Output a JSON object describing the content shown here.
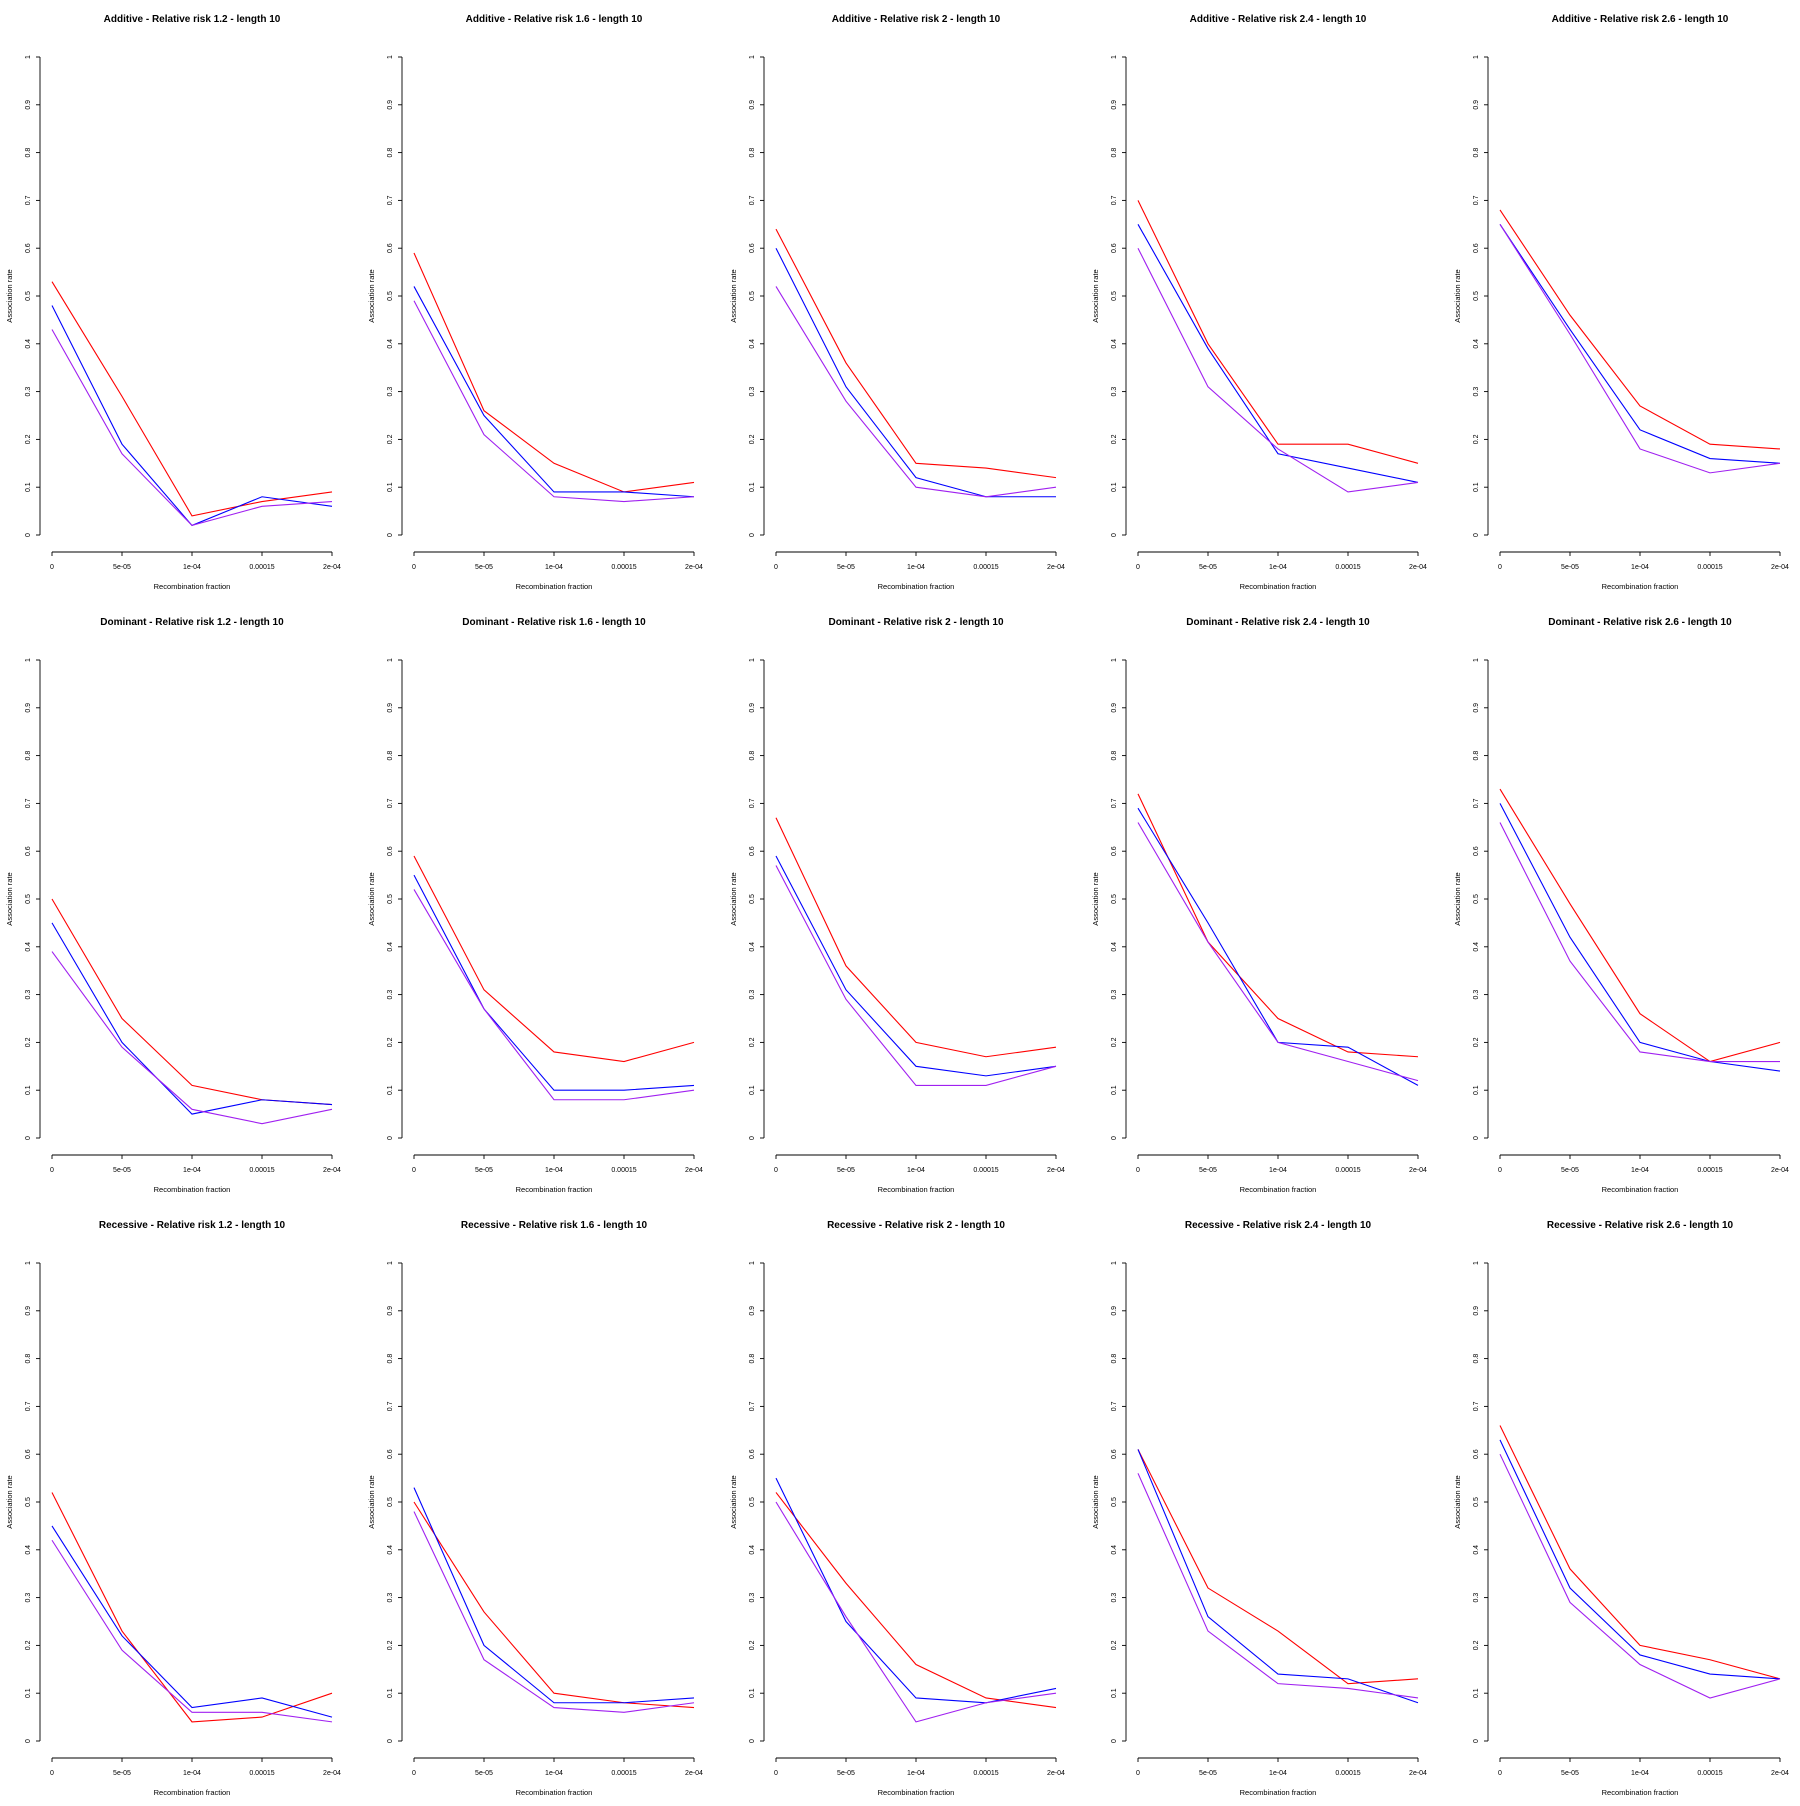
{
  "colors": {
    "series_red": "#ff0000",
    "series_blue": "#0000ff",
    "series_purple": "#a020f0",
    "axis": "#000000"
  },
  "chart_data": [
    {
      "type": "line",
      "title": "Additive  - Relative risk 1.2 - length 10",
      "xlabel": "Recombination fraction",
      "ylabel": "Association rate",
      "categories": [
        "0",
        "5e-05",
        "1e-04",
        "0.00015",
        "2e-04"
      ],
      "y_ticks": [
        "0",
        "0.1",
        "0.2",
        "0.3",
        "0.4",
        "0.5",
        "0.6",
        "0.7",
        "0.8",
        "0.9",
        "1"
      ],
      "ylim": [
        0,
        1
      ],
      "series": [
        {
          "color": "#ff0000",
          "values": [
            0.53,
            0.29,
            0.04,
            0.07,
            0.09
          ]
        },
        {
          "color": "#0000ff",
          "values": [
            0.48,
            0.19,
            0.02,
            0.08,
            0.06
          ]
        },
        {
          "color": "#a020f0",
          "values": [
            0.43,
            0.17,
            0.02,
            0.06,
            0.07
          ]
        }
      ]
    },
    {
      "type": "line",
      "title": "Additive  - Relative risk 1.6 - length 10",
      "xlabel": "Recombination fraction",
      "ylabel": "Association rate",
      "categories": [
        "0",
        "5e-05",
        "1e-04",
        "0.00015",
        "2e-04"
      ],
      "y_ticks": [
        "0",
        "0.1",
        "0.2",
        "0.3",
        "0.4",
        "0.5",
        "0.6",
        "0.7",
        "0.8",
        "0.9",
        "1"
      ],
      "ylim": [
        0,
        1
      ],
      "series": [
        {
          "color": "#ff0000",
          "values": [
            0.59,
            0.26,
            0.15,
            0.09,
            0.11
          ]
        },
        {
          "color": "#0000ff",
          "values": [
            0.52,
            0.25,
            0.09,
            0.09,
            0.08
          ]
        },
        {
          "color": "#a020f0",
          "values": [
            0.49,
            0.21,
            0.08,
            0.07,
            0.08
          ]
        }
      ]
    },
    {
      "type": "line",
      "title": "Additive  - Relative risk 2 - length 10",
      "xlabel": "Recombination fraction",
      "ylabel": "Association rate",
      "categories": [
        "0",
        "5e-05",
        "1e-04",
        "0.00015",
        "2e-04"
      ],
      "y_ticks": [
        "0",
        "0.1",
        "0.2",
        "0.3",
        "0.4",
        "0.5",
        "0.6",
        "0.7",
        "0.8",
        "0.9",
        "1"
      ],
      "ylim": [
        0,
        1
      ],
      "series": [
        {
          "color": "#ff0000",
          "values": [
            0.64,
            0.36,
            0.15,
            0.14,
            0.12
          ]
        },
        {
          "color": "#0000ff",
          "values": [
            0.6,
            0.31,
            0.12,
            0.08,
            0.08
          ]
        },
        {
          "color": "#a020f0",
          "values": [
            0.52,
            0.28,
            0.1,
            0.08,
            0.1
          ]
        }
      ]
    },
    {
      "type": "line",
      "title": "Additive  - Relative risk 2.4 - length 10",
      "xlabel": "Recombination fraction",
      "ylabel": "Association rate",
      "categories": [
        "0",
        "5e-05",
        "1e-04",
        "0.00015",
        "2e-04"
      ],
      "y_ticks": [
        "0",
        "0.1",
        "0.2",
        "0.3",
        "0.4",
        "0.5",
        "0.6",
        "0.7",
        "0.8",
        "0.9",
        "1"
      ],
      "ylim": [
        0,
        1
      ],
      "series": [
        {
          "color": "#ff0000",
          "values": [
            0.7,
            0.4,
            0.19,
            0.19,
            0.15
          ]
        },
        {
          "color": "#0000ff",
          "values": [
            0.65,
            0.39,
            0.17,
            0.14,
            0.11
          ]
        },
        {
          "color": "#a020f0",
          "values": [
            0.6,
            0.31,
            0.18,
            0.09,
            0.11
          ]
        }
      ]
    },
    {
      "type": "line",
      "title": "Additive  - Relative risk 2.6 - length 10",
      "xlabel": "Recombination fraction",
      "ylabel": "Association rate",
      "categories": [
        "0",
        "5e-05",
        "1e-04",
        "0.00015",
        "2e-04"
      ],
      "y_ticks": [
        "0",
        "0.1",
        "0.2",
        "0.3",
        "0.4",
        "0.5",
        "0.6",
        "0.7",
        "0.8",
        "0.9",
        "1"
      ],
      "ylim": [
        0,
        1
      ],
      "series": [
        {
          "color": "#ff0000",
          "values": [
            0.68,
            0.46,
            0.27,
            0.19,
            0.18
          ]
        },
        {
          "color": "#0000ff",
          "values": [
            0.65,
            0.43,
            0.22,
            0.16,
            0.15
          ]
        },
        {
          "color": "#a020f0",
          "values": [
            0.65,
            0.42,
            0.18,
            0.13,
            0.15
          ]
        }
      ]
    },
    {
      "type": "line",
      "title": "Dominant  - Relative risk 1.2 - length 10",
      "xlabel": "Recombination fraction",
      "ylabel": "Association rate",
      "categories": [
        "0",
        "5e-05",
        "1e-04",
        "0.00015",
        "2e-04"
      ],
      "y_ticks": [
        "0",
        "0.1",
        "0.2",
        "0.3",
        "0.4",
        "0.5",
        "0.6",
        "0.7",
        "0.8",
        "0.9",
        "1"
      ],
      "ylim": [
        0,
        1
      ],
      "series": [
        {
          "color": "#ff0000",
          "values": [
            0.5,
            0.25,
            0.11,
            0.08,
            0.07
          ]
        },
        {
          "color": "#0000ff",
          "values": [
            0.45,
            0.2,
            0.05,
            0.08,
            0.07
          ]
        },
        {
          "color": "#a020f0",
          "values": [
            0.39,
            0.19,
            0.06,
            0.03,
            0.06
          ]
        }
      ]
    },
    {
      "type": "line",
      "title": "Dominant  - Relative risk 1.6 - length 10",
      "xlabel": "Recombination fraction",
      "ylabel": "Association rate",
      "categories": [
        "0",
        "5e-05",
        "1e-04",
        "0.00015",
        "2e-04"
      ],
      "y_ticks": [
        "0",
        "0.1",
        "0.2",
        "0.3",
        "0.4",
        "0.5",
        "0.6",
        "0.7",
        "0.8",
        "0.9",
        "1"
      ],
      "ylim": [
        0,
        1
      ],
      "series": [
        {
          "color": "#ff0000",
          "values": [
            0.59,
            0.31,
            0.18,
            0.16,
            0.2
          ]
        },
        {
          "color": "#0000ff",
          "values": [
            0.55,
            0.27,
            0.1,
            0.1,
            0.11
          ]
        },
        {
          "color": "#a020f0",
          "values": [
            0.52,
            0.27,
            0.08,
            0.08,
            0.1
          ]
        }
      ]
    },
    {
      "type": "line",
      "title": "Dominant  - Relative risk 2 - length 10",
      "xlabel": "Recombination fraction",
      "ylabel": "Association rate",
      "categories": [
        "0",
        "5e-05",
        "1e-04",
        "0.00015",
        "2e-04"
      ],
      "y_ticks": [
        "0",
        "0.1",
        "0.2",
        "0.3",
        "0.4",
        "0.5",
        "0.6",
        "0.7",
        "0.8",
        "0.9",
        "1"
      ],
      "ylim": [
        0,
        1
      ],
      "series": [
        {
          "color": "#ff0000",
          "values": [
            0.67,
            0.36,
            0.2,
            0.17,
            0.19
          ]
        },
        {
          "color": "#0000ff",
          "values": [
            0.59,
            0.31,
            0.15,
            0.13,
            0.15
          ]
        },
        {
          "color": "#a020f0",
          "values": [
            0.57,
            0.29,
            0.11,
            0.11,
            0.15
          ]
        }
      ]
    },
    {
      "type": "line",
      "title": "Dominant  - Relative risk 2.4 - length 10",
      "xlabel": "Recombination fraction",
      "ylabel": "Association rate",
      "categories": [
        "0",
        "5e-05",
        "1e-04",
        "0.00015",
        "2e-04"
      ],
      "y_ticks": [
        "0",
        "0.1",
        "0.2",
        "0.3",
        "0.4",
        "0.5",
        "0.6",
        "0.7",
        "0.8",
        "0.9",
        "1"
      ],
      "ylim": [
        0,
        1
      ],
      "series": [
        {
          "color": "#ff0000",
          "values": [
            0.72,
            0.41,
            0.25,
            0.18,
            0.17
          ]
        },
        {
          "color": "#0000ff",
          "values": [
            0.69,
            0.45,
            0.2,
            0.19,
            0.11
          ]
        },
        {
          "color": "#a020f0",
          "values": [
            0.66,
            0.41,
            0.2,
            0.16,
            0.12
          ]
        }
      ]
    },
    {
      "type": "line",
      "title": "Dominant  - Relative risk 2.6 - length 10",
      "xlabel": "Recombination fraction",
      "ylabel": "Association rate",
      "categories": [
        "0",
        "5e-05",
        "1e-04",
        "0.00015",
        "2e-04"
      ],
      "y_ticks": [
        "0",
        "0.1",
        "0.2",
        "0.3",
        "0.4",
        "0.5",
        "0.6",
        "0.7",
        "0.8",
        "0.9",
        "1"
      ],
      "ylim": [
        0,
        1
      ],
      "series": [
        {
          "color": "#ff0000",
          "values": [
            0.73,
            0.49,
            0.26,
            0.16,
            0.2
          ]
        },
        {
          "color": "#0000ff",
          "values": [
            0.7,
            0.42,
            0.2,
            0.16,
            0.14
          ]
        },
        {
          "color": "#a020f0",
          "values": [
            0.66,
            0.37,
            0.18,
            0.16,
            0.16
          ]
        }
      ]
    },
    {
      "type": "line",
      "title": "Recessive  - Relative risk 1.2 - length 10",
      "xlabel": "Recombination fraction",
      "ylabel": "Association rate",
      "categories": [
        "0",
        "5e-05",
        "1e-04",
        "0.00015",
        "2e-04"
      ],
      "y_ticks": [
        "0",
        "0.1",
        "0.2",
        "0.3",
        "0.4",
        "0.5",
        "0.6",
        "0.7",
        "0.8",
        "0.9",
        "1"
      ],
      "ylim": [
        0,
        1
      ],
      "series": [
        {
          "color": "#ff0000",
          "values": [
            0.52,
            0.23,
            0.04,
            0.05,
            0.1
          ]
        },
        {
          "color": "#0000ff",
          "values": [
            0.45,
            0.22,
            0.07,
            0.09,
            0.05
          ]
        },
        {
          "color": "#a020f0",
          "values": [
            0.42,
            0.19,
            0.06,
            0.06,
            0.04
          ]
        }
      ]
    },
    {
      "type": "line",
      "title": "Recessive  - Relative risk 1.6 - length 10",
      "xlabel": "Recombination fraction",
      "ylabel": "Association rate",
      "categories": [
        "0",
        "5e-05",
        "1e-04",
        "0.00015",
        "2e-04"
      ],
      "y_ticks": [
        "0",
        "0.1",
        "0.2",
        "0.3",
        "0.4",
        "0.5",
        "0.6",
        "0.7",
        "0.8",
        "0.9",
        "1"
      ],
      "ylim": [
        0,
        1
      ],
      "series": [
        {
          "color": "#ff0000",
          "values": [
            0.5,
            0.27,
            0.1,
            0.08,
            0.07
          ]
        },
        {
          "color": "#0000ff",
          "values": [
            0.53,
            0.2,
            0.08,
            0.08,
            0.09
          ]
        },
        {
          "color": "#a020f0",
          "values": [
            0.48,
            0.17,
            0.07,
            0.06,
            0.08
          ]
        }
      ]
    },
    {
      "type": "line",
      "title": "Recessive  - Relative risk 2 - length 10",
      "xlabel": "Recombination fraction",
      "ylabel": "Association rate",
      "categories": [
        "0",
        "5e-05",
        "1e-04",
        "0.00015",
        "2e-04"
      ],
      "y_ticks": [
        "0",
        "0.1",
        "0.2",
        "0.3",
        "0.4",
        "0.5",
        "0.6",
        "0.7",
        "0.8",
        "0.9",
        "1"
      ],
      "ylim": [
        0,
        1
      ],
      "series": [
        {
          "color": "#ff0000",
          "values": [
            0.52,
            0.33,
            0.16,
            0.09,
            0.07
          ]
        },
        {
          "color": "#0000ff",
          "values": [
            0.55,
            0.25,
            0.09,
            0.08,
            0.11
          ]
        },
        {
          "color": "#a020f0",
          "values": [
            0.5,
            0.26,
            0.04,
            0.08,
            0.1
          ]
        }
      ]
    },
    {
      "type": "line",
      "title": "Recessive  - Relative risk 2.4 - length 10",
      "xlabel": "Recombination fraction",
      "ylabel": "Association rate",
      "categories": [
        "0",
        "5e-05",
        "1e-04",
        "0.00015",
        "2e-04"
      ],
      "y_ticks": [
        "0",
        "0.1",
        "0.2",
        "0.3",
        "0.4",
        "0.5",
        "0.6",
        "0.7",
        "0.8",
        "0.9",
        "1"
      ],
      "ylim": [
        0,
        1
      ],
      "series": [
        {
          "color": "#ff0000",
          "values": [
            0.61,
            0.32,
            0.23,
            0.12,
            0.13
          ]
        },
        {
          "color": "#0000ff",
          "values": [
            0.61,
            0.26,
            0.14,
            0.13,
            0.08
          ]
        },
        {
          "color": "#a020f0",
          "values": [
            0.56,
            0.23,
            0.12,
            0.11,
            0.09
          ]
        }
      ]
    },
    {
      "type": "line",
      "title": "Recessive  - Relative risk 2.6 - length 10",
      "xlabel": "Recombination fraction",
      "ylabel": "Association rate",
      "categories": [
        "0",
        "5e-05",
        "1e-04",
        "0.00015",
        "2e-04"
      ],
      "y_ticks": [
        "0",
        "0.1",
        "0.2",
        "0.3",
        "0.4",
        "0.5",
        "0.6",
        "0.7",
        "0.8",
        "0.9",
        "1"
      ],
      "ylim": [
        0,
        1
      ],
      "series": [
        {
          "color": "#ff0000",
          "values": [
            0.66,
            0.36,
            0.2,
            0.17,
            0.13
          ]
        },
        {
          "color": "#0000ff",
          "values": [
            0.63,
            0.32,
            0.18,
            0.14,
            0.13
          ]
        },
        {
          "color": "#a020f0",
          "values": [
            0.6,
            0.29,
            0.16,
            0.09,
            0.13
          ]
        }
      ]
    }
  ]
}
